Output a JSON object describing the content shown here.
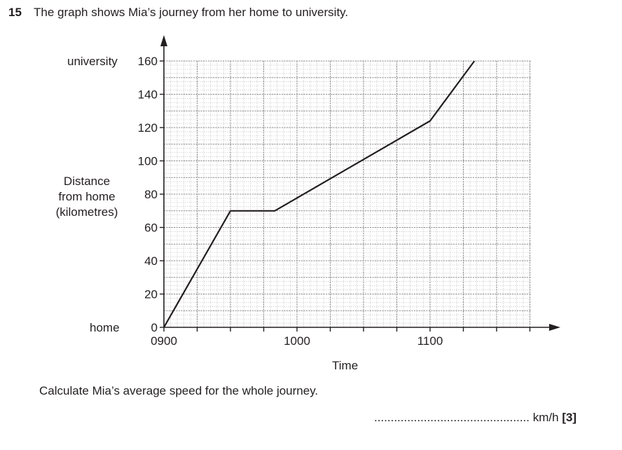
{
  "question": {
    "number": "15",
    "text": "The graph shows Mia’s journey from her home to university."
  },
  "labels": {
    "top_place": "university",
    "bottom_place": "home",
    "y_axis": [
      "Distance",
      "from home",
      "(kilometres)"
    ],
    "x_axis": "Time"
  },
  "task": "Calculate Mia’s average speed for the whole journey.",
  "answer_line": {
    "dots": "...............................................",
    "unit": "km/h",
    "marks": "[3]"
  },
  "chart_data": {
    "type": "line",
    "xlabel": "Time",
    "ylabel": "Distance from home (kilometres)",
    "x_ticks": [
      "0900",
      "1000",
      "1100"
    ],
    "y_ticks": [
      "0",
      "20",
      "40",
      "60",
      "80",
      "100",
      "120",
      "140",
      "160"
    ],
    "xlim": [
      "0900",
      "1150"
    ],
    "ylim": [
      0,
      160
    ],
    "grid": true,
    "series": [
      {
        "x": [
          "0900",
          "0930",
          "0950",
          "1100",
          "1120"
        ],
        "y": [
          0,
          70,
          70,
          124,
          160
        ]
      }
    ],
    "colors": {
      "line": "#231f20",
      "grid_major": "#8a8a8a",
      "grid_minor": "#bdbdbd"
    }
  }
}
